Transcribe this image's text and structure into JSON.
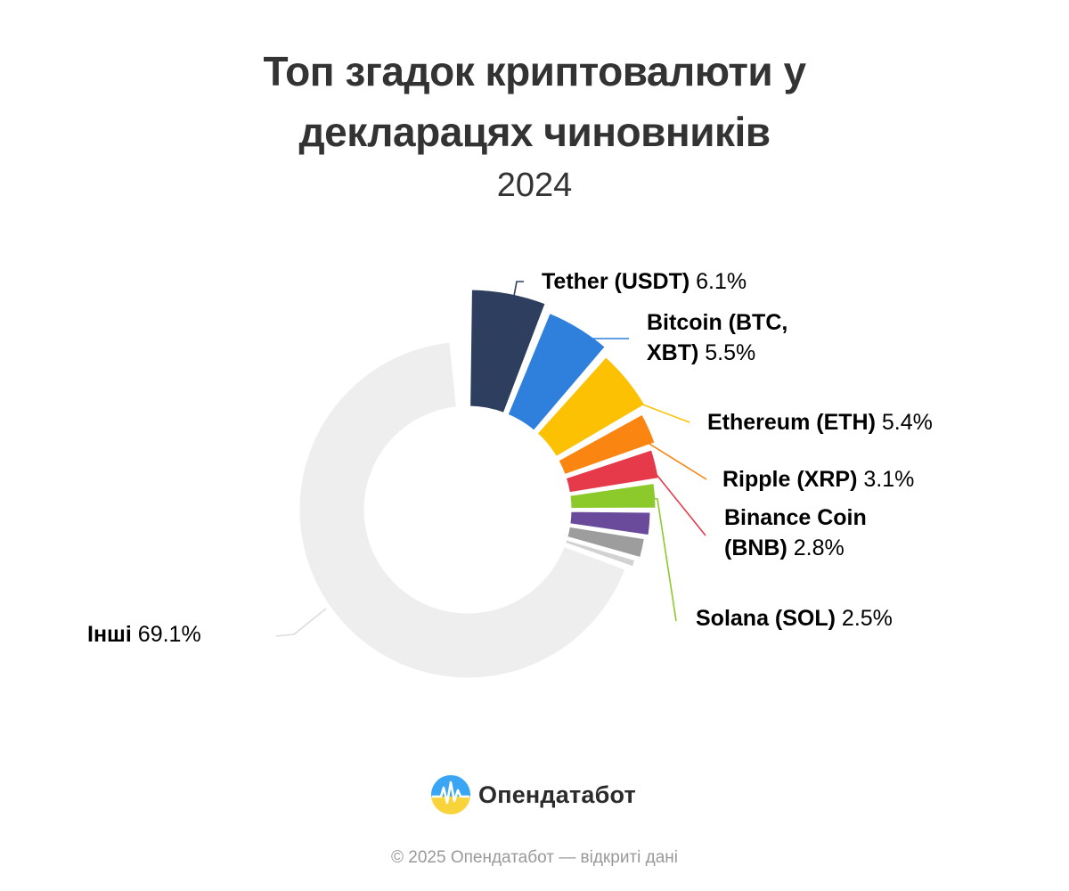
{
  "chart_data": {
    "type": "pie",
    "title": "Топ згадок криптовалюти у\nдекларацях чиновників",
    "subtitle": "2024",
    "slices": [
      {
        "label_lines": [
          "Tether (USDT)"
        ],
        "pct_text": "6.1%",
        "value": 6.1,
        "color": "#2d3e5e"
      },
      {
        "label_lines": [
          "Bitcoin (BTC,",
          "XBT)"
        ],
        "pct_text": "5.5%",
        "value": 5.5,
        "color": "#2f80dd"
      },
      {
        "label_lines": [
          "Ethereum (ETH)"
        ],
        "pct_text": "5.4%",
        "value": 5.4,
        "color": "#fbc102"
      },
      {
        "label_lines": [
          "Ripple (XRP)"
        ],
        "pct_text": "3.1%",
        "value": 3.1,
        "color": "#fa8510"
      },
      {
        "label_lines": [
          "Binance Coin",
          "(BNB)"
        ],
        "pct_text": "2.8%",
        "value": 2.8,
        "color": "#e63a4a"
      },
      {
        "label_lines": [
          "Solana (SOL)"
        ],
        "pct_text": "2.5%",
        "value": 2.5,
        "color": "#8cca2c"
      },
      {
        "label_lines": [],
        "pct_text": "",
        "value": 2.4,
        "color": "#6a4a9a"
      },
      {
        "label_lines": [],
        "pct_text": "",
        "value": 2.1,
        "color": "#9d9d9d"
      },
      {
        "label_lines": [],
        "pct_text": "",
        "value": 1.0,
        "color": "#d2d2d2"
      },
      {
        "label_lines": [
          "Інші"
        ],
        "pct_text": "69.1%",
        "value": 69.1,
        "color": "#eeeeee"
      }
    ]
  },
  "brand": {
    "name": "Опендатабот"
  },
  "footer": {
    "text": "© 2025 Опендатабот — відкриті дані"
  }
}
